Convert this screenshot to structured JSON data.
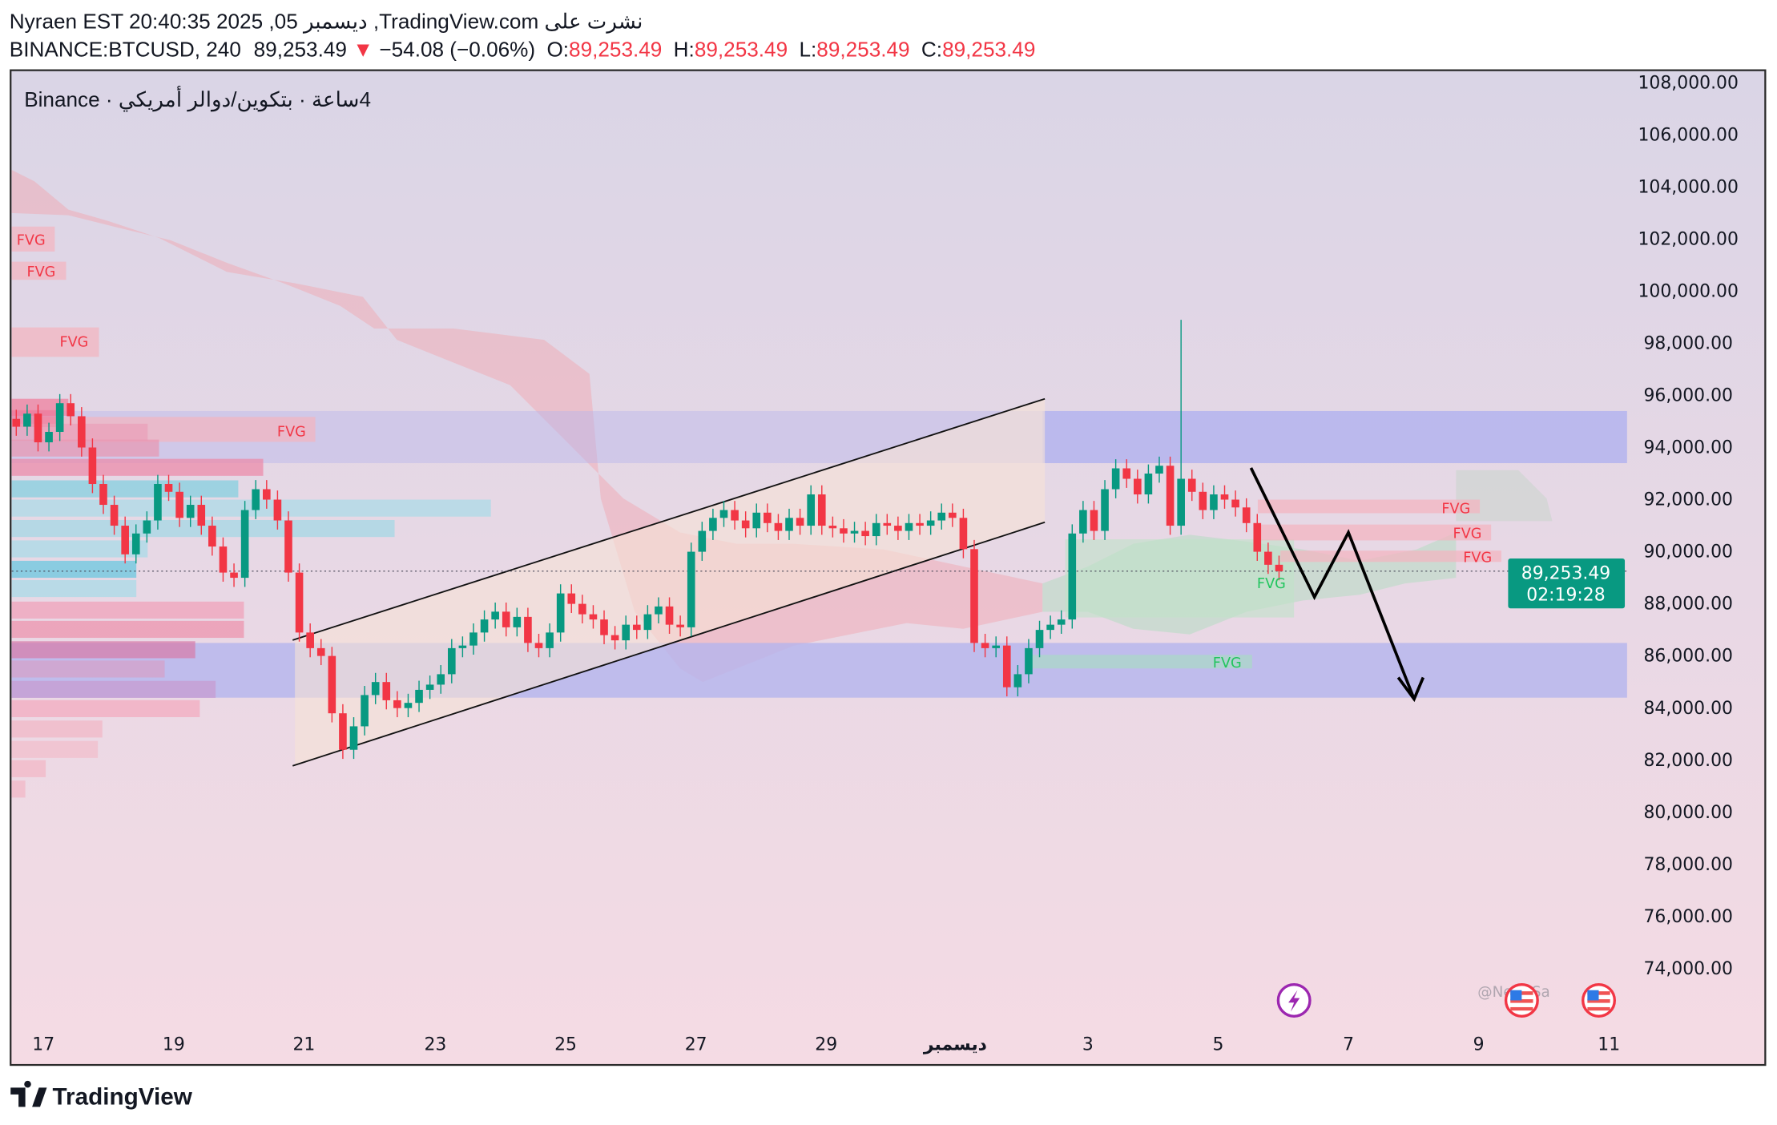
{
  "header": {
    "line1": "Nyraen EST 20:40:35 2025 ,05 ربمسيد ,TradingView.com ىلع ترشن",
    "symbol": "BINANCE:BTCUSD, 240",
    "last": "89,253.49",
    "change": "−54.08 (−0.06%)",
    "o_label": "O:",
    "o": "89,253.49",
    "h_label": "H:",
    "h": "89,253.49",
    "l_label": "L:",
    "l": "89,253.49",
    "c_label": "C:",
    "c": "89,253.49"
  },
  "legend": "Binance · يكيرمأ رلاود/نيوكتب · ةعاس4",
  "price_axis": [
    "108,000.00",
    "106,000.00",
    "104,000.00",
    "102,000.00",
    "100,000.00",
    "98,000.00",
    "96,000.00",
    "94,000.00",
    "92,000.00",
    "90,000.00",
    "88,000.00",
    "86,000.00",
    "84,000.00",
    "82,000.00",
    "80,000.00",
    "78,000.00",
    "76,000.00",
    "74,000.00"
  ],
  "time_axis": [
    "17",
    "19",
    "21",
    "23",
    "25",
    "27",
    "29",
    "ديسمبر",
    "3",
    "5",
    "7",
    "9",
    "11"
  ],
  "current_price": {
    "value": "89,253.49",
    "countdown": "02:19:28",
    "color": "#089981"
  },
  "watermark": "@New_Sa",
  "brand": "TradingView",
  "fvg_labels": {
    "red": [
      "FVG",
      "FVG",
      "FVG",
      "FVG",
      "FVG",
      "FVG",
      "FVG"
    ],
    "green": [
      "FVG",
      "FVG"
    ]
  },
  "colors": {
    "up": "#089981",
    "down": "#f23645",
    "zone": "#b4b4ee",
    "fvg_red": "#f23645",
    "fvg_green": "#22c55e"
  },
  "icons": [
    "lightning-event-icon",
    "us-flag-event-icon",
    "us-flag-event-icon",
    "tradingview-logo-icon"
  ],
  "chart_data": {
    "type": "candlestick",
    "symbol": "BINANCE:BTCUSD",
    "interval": "240",
    "ylim": [
      72500,
      109000
    ],
    "spike_high": 98900,
    "closes": [
      94800,
      95300,
      94200,
      94600,
      95700,
      95200,
      94000,
      92600,
      91800,
      91000,
      89900,
      90700,
      91200,
      92600,
      92300,
      91300,
      91800,
      91000,
      90200,
      89200,
      89000,
      91600,
      92400,
      92000,
      91200,
      89200,
      86900,
      86300,
      86000,
      83800,
      82400,
      83300,
      84500,
      85000,
      84300,
      84000,
      84200,
      84700,
      84900,
      85300,
      86300,
      86400,
      86900,
      87400,
      87700,
      87100,
      87500,
      86500,
      86300,
      86900,
      88400,
      88000,
      87600,
      87400,
      86800,
      86600,
      87200,
      87000,
      87600,
      87900,
      87200,
      87100,
      90000,
      90800,
      91300,
      91600,
      91200,
      90900,
      91500,
      91100,
      90800,
      91300,
      91000,
      92200,
      91000,
      90900,
      90700,
      90800,
      90600,
      91100,
      91000,
      90800,
      91100,
      91000,
      91200,
      91500,
      91300,
      90100,
      86500,
      86300,
      86400,
      84800,
      85300,
      86300,
      87000,
      87200,
      87400,
      90700,
      91600,
      90800,
      92400,
      93200,
      92800,
      92200,
      93000,
      93300,
      91000,
      92800,
      92300,
      91600,
      92200,
      92000,
      91700,
      91100,
      90000,
      89500,
      89253.49
    ],
    "zones": [
      {
        "top": 95400,
        "bottom": 93400
      },
      {
        "top": 86500,
        "bottom": 84400
      }
    ]
  }
}
